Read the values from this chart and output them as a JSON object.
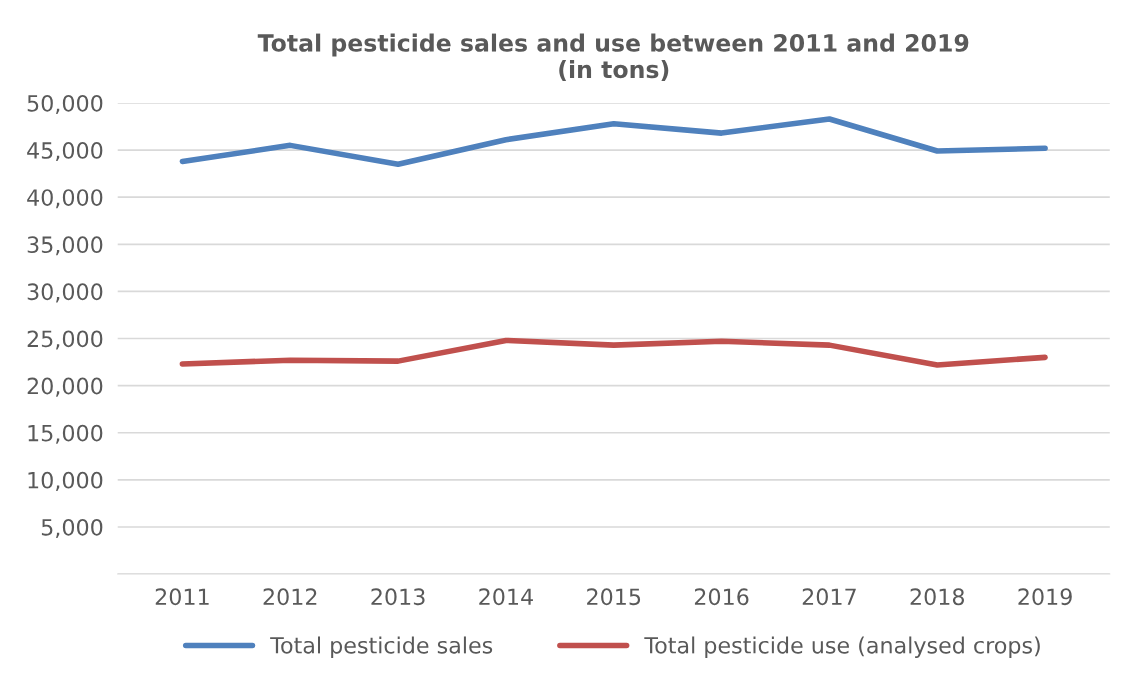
{
  "chart_data": {
    "type": "line",
    "title": "Total pesticide sales and use between 2011 and 2019\n(in tons)",
    "categories": [
      "2011",
      "2012",
      "2013",
      "2014",
      "2015",
      "2016",
      "2017",
      "2018",
      "2019"
    ],
    "series": [
      {
        "name": "Total pesticide sales",
        "color": "#4f81bd",
        "values": [
          43800,
          45500,
          43500,
          46100,
          47800,
          46800,
          48300,
          44900,
          45200
        ]
      },
      {
        "name": "Total pesticide use (analysed crops)",
        "color": "#c0504d",
        "values": [
          22300,
          22700,
          22600,
          24800,
          24300,
          24700,
          24300,
          22200,
          23000
        ]
      }
    ],
    "ylim": [
      0,
      50000
    ],
    "yticks": [
      {
        "value": 0,
        "label": null
      },
      {
        "value": 5000,
        "label": "5,000"
      },
      {
        "value": 10000,
        "label": "10,000"
      },
      {
        "value": 15000,
        "label": "15,000"
      },
      {
        "value": 20000,
        "label": "20,000"
      },
      {
        "value": 25000,
        "label": "25,000"
      },
      {
        "value": 30000,
        "label": "30,000"
      },
      {
        "value": 35000,
        "label": "35,000"
      },
      {
        "value": 40000,
        "label": "40,000"
      },
      {
        "value": 45000,
        "label": "45,000"
      },
      {
        "value": 50000,
        "label": "50,000"
      }
    ],
    "grid": "y",
    "legend": "bottom",
    "marker": "none",
    "line_style": "solid"
  }
}
